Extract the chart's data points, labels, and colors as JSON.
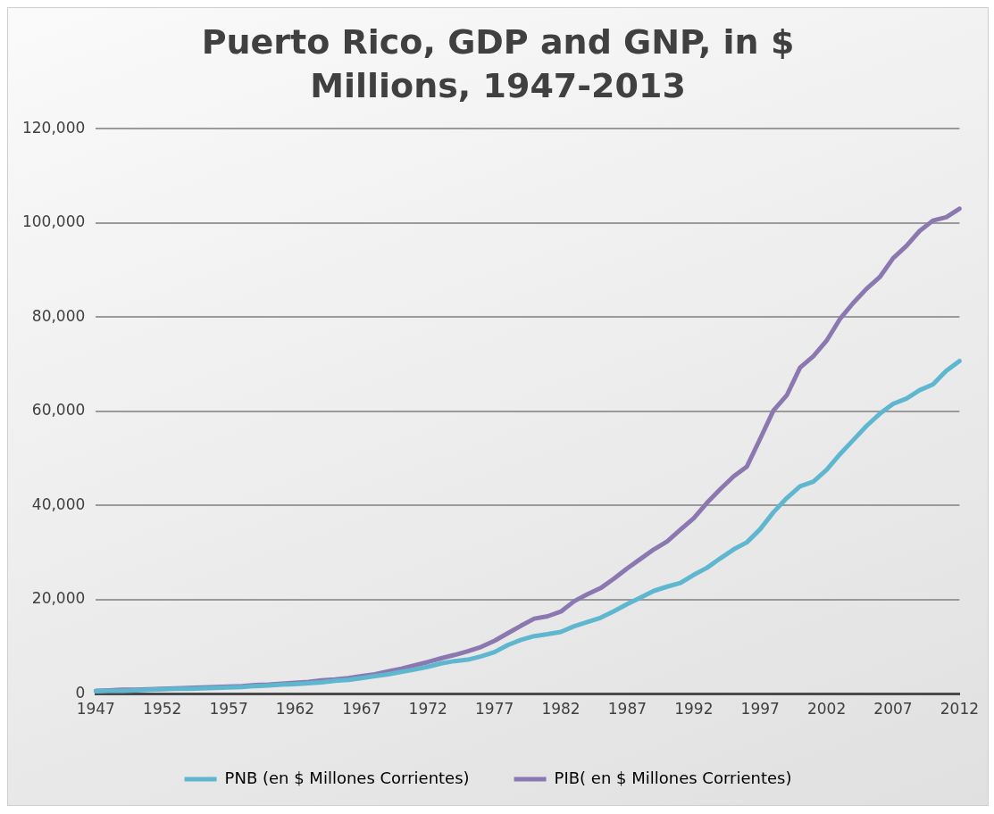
{
  "chart_data": {
    "type": "line",
    "title": "Puerto Rico, GDP and GNP, in $ Millions, 1947-2013",
    "categories": [
      "1947",
      null,
      null,
      null,
      null,
      "1952",
      null,
      null,
      null,
      null,
      "1957",
      null,
      null,
      null,
      null,
      "1962",
      null,
      null,
      null,
      null,
      "1967",
      null,
      null,
      null,
      null,
      "1972",
      null,
      null,
      null,
      null,
      "1977",
      null,
      null,
      null,
      null,
      "1982",
      null,
      null,
      null,
      null,
      "1987",
      null,
      null,
      null,
      null,
      "1992",
      null,
      null,
      null,
      null,
      "1997",
      null,
      null,
      null,
      null,
      "2002",
      null,
      null,
      null,
      null,
      "2007",
      null,
      null,
      null,
      null,
      "2012"
    ],
    "series": [
      {
        "name": "PNB (en $ Millones Corrientes)",
        "color": "#5fb7cf",
        "values": [
          600,
          700,
          700,
          800,
          900,
          1000,
          1100,
          1100,
          1200,
          1300,
          1400,
          1500,
          1700,
          1800,
          2000,
          2100,
          2300,
          2500,
          2800,
          3000,
          3400,
          3800,
          4200,
          4700,
          5200,
          5800,
          6500,
          7000,
          7300,
          8000,
          8900,
          10400,
          11500,
          12300,
          12700,
          13200,
          14400,
          15300,
          16200,
          17600,
          19100,
          20500,
          21900,
          22800,
          23600,
          25300,
          26800,
          28800,
          30700,
          32200,
          35000,
          38600,
          41600,
          44100,
          45100,
          47600,
          50900,
          53900,
          56900,
          59500,
          61600,
          62700,
          64500,
          65700,
          68600,
          70700
        ]
      },
      {
        "name": "PIB( en $ Millones Corrientes)",
        "color": "#8c78b0",
        "values": [
          700,
          800,
          900,
          900,
          1000,
          1100,
          1200,
          1300,
          1400,
          1500,
          1600,
          1700,
          1900,
          2000,
          2200,
          2400,
          2600,
          2900,
          3100,
          3400,
          3800,
          4200,
          4800,
          5400,
          6100,
          6800,
          7600,
          8300,
          9100,
          10000,
          11300,
          12900,
          14500,
          16000,
          16500,
          17500,
          19700,
          21200,
          22500,
          24500,
          26700,
          28700,
          30700,
          32400,
          34900,
          37300,
          40600,
          43500,
          46200,
          48300,
          54200,
          60200,
          63400,
          69300,
          71700,
          75000,
          79600,
          83000,
          86000,
          88500,
          92500,
          95100,
          98300,
          100500,
          101200,
          103000
        ]
      }
    ],
    "ylim": [
      0,
      120000
    ],
    "yticks": [
      0,
      {
        "value": 20000,
        "label": "20,000"
      },
      {
        "value": 40000,
        "label": "40,000"
      },
      {
        "value": 60000,
        "label": "60,000"
      },
      {
        "value": 80000,
        "label": "80,000"
      },
      {
        "value": 100000,
        "label": "100,000"
      },
      {
        "value": 120000,
        "label": "120,000"
      }
    ],
    "grid": "y",
    "legend": "bottom",
    "marker": "none",
    "line_style": "solid"
  }
}
